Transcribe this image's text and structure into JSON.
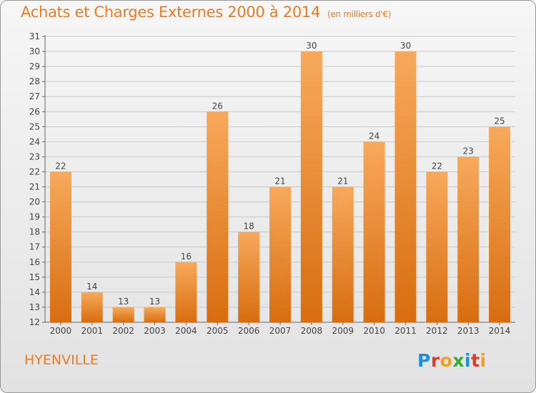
{
  "title": "Achats et Charges Externes 2000 à 2014",
  "subtitle": "(en milliers d'€)",
  "commune": "HYENVILLE",
  "logo": {
    "letters": [
      "P",
      "r",
      "o",
      "x",
      "i",
      "t",
      "i"
    ],
    "colors": [
      "#1e8fd6",
      "#e23b2b",
      "#f0a020",
      "#3aa832",
      "#1e8fd6",
      "#e23b2b",
      "#f0a020"
    ]
  },
  "colors": {
    "accent": "#ee7b1e",
    "bar_light": "#f7a95b",
    "bar_dark": "#d86d10",
    "grid": "#c8c8c8"
  },
  "chart_data": {
    "type": "bar",
    "categories": [
      "2000",
      "2001",
      "2002",
      "2003",
      "2004",
      "2005",
      "2006",
      "2007",
      "2008",
      "2009",
      "2010",
      "2011",
      "2012",
      "2013",
      "2014"
    ],
    "values": [
      22,
      14,
      13,
      13,
      16,
      26,
      18,
      21,
      30,
      21,
      24,
      30,
      22,
      23,
      25
    ],
    "ylim": [
      12,
      31
    ],
    "yticks": [
      12,
      13,
      14,
      15,
      16,
      17,
      18,
      19,
      20,
      21,
      22,
      23,
      24,
      25,
      26,
      27,
      28,
      29,
      30,
      31
    ],
    "grid": true,
    "data_labels": true
  }
}
